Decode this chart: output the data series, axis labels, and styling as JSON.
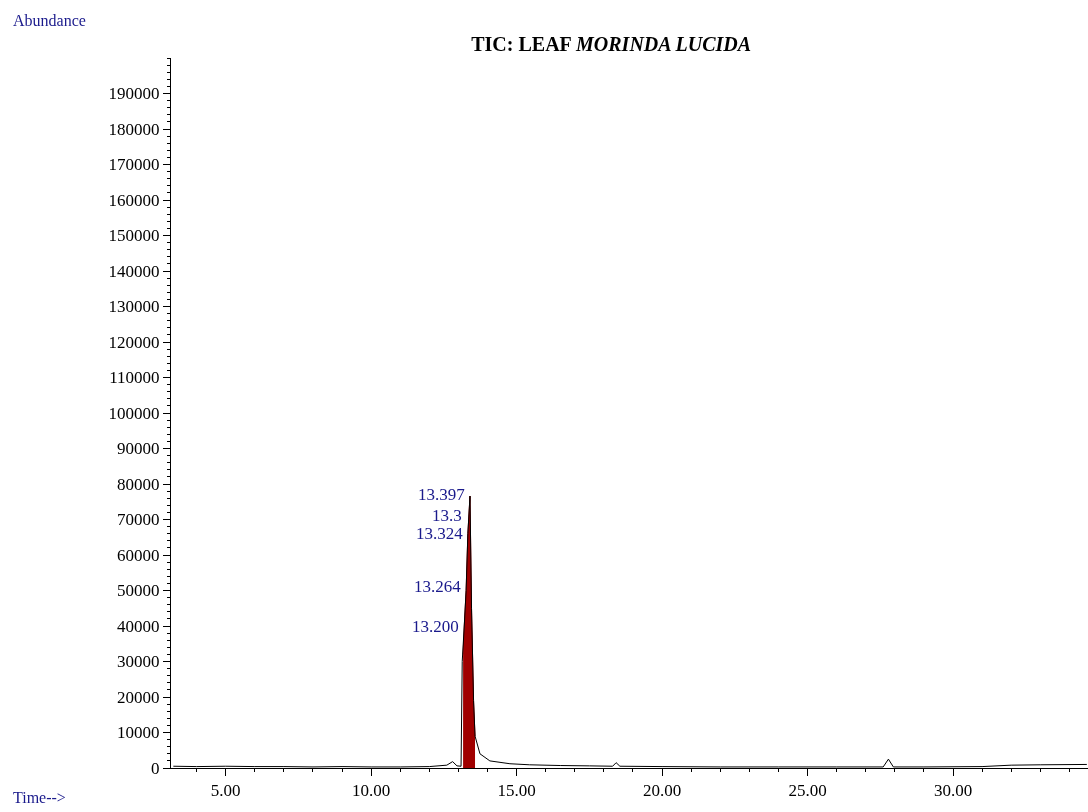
{
  "chart_data": {
    "type": "line",
    "title": "TIC: LEAF MORINDA LUCIDA",
    "xlabel": "Time-->",
    "ylabel": "Abundance",
    "xlim": [
      3.12,
      34.64
    ],
    "xticks": [
      {
        "value": 5,
        "label": "5.00"
      },
      {
        "value": 10,
        "label": "10.00"
      },
      {
        "value": 15,
        "label": "15.00"
      },
      {
        "value": 20,
        "label": "20.00"
      },
      {
        "value": 25,
        "label": "25.00"
      },
      {
        "value": 30,
        "label": "30.00"
      }
    ],
    "ylim": [
      0,
      200000
    ],
    "yticks": [
      0,
      10000,
      20000,
      30000,
      40000,
      50000,
      60000,
      70000,
      80000,
      90000,
      100000,
      110000,
      120000,
      130000,
      140000,
      150000,
      160000,
      170000,
      180000,
      190000
    ],
    "marker": "none",
    "line_style": "solid",
    "series": [
      {
        "color": "#000000",
        "x": [
          3.2,
          4,
          5,
          6,
          7,
          8,
          9,
          10,
          11,
          12,
          12.6,
          12.8,
          12.95,
          13.09,
          13.13,
          13.2,
          13.264,
          13.324,
          13.397,
          13.45,
          13.52,
          13.57,
          13.74,
          14.08,
          14.77,
          15.45,
          16.5,
          17.5,
          18.3,
          18.42,
          18.55,
          20,
          22,
          24,
          26,
          27.6,
          27.78,
          27.95,
          29,
          31,
          32,
          33,
          34.6
        ],
        "values": [
          500,
          400,
          500,
          400,
          400,
          300,
          400,
          300,
          300,
          400,
          800,
          1800,
          600,
          500,
          30000,
          40000,
          50000,
          66000,
          76600,
          45000,
          19000,
          9000,
          4000,
          2000,
          1200,
          900,
          700,
          600,
          500,
          1500,
          500,
          400,
          300,
          300,
          300,
          300,
          2500,
          300,
          300,
          400,
          800,
          900,
          1000
        ]
      },
      {
        "type": "area",
        "color": "#a00000",
        "x": [
          13.16,
          13.2,
          13.264,
          13.324,
          13.397,
          13.45,
          13.52,
          13.57
        ],
        "values": [
          32000,
          40000,
          50000,
          66000,
          76600,
          45000,
          19000,
          9000
        ]
      }
    ],
    "annotations": [
      {
        "text": "13.397",
        "x": 13.397,
        "y": 77000
      },
      {
        "text": "13.3",
        "x": 13.3,
        "y": 71000
      },
      {
        "text": "13.324",
        "x": 13.324,
        "y": 66000
      },
      {
        "text": "13.264",
        "x": 13.264,
        "y": 51000
      },
      {
        "text": "13.200",
        "x": 13.2,
        "y": 40000
      }
    ]
  }
}
